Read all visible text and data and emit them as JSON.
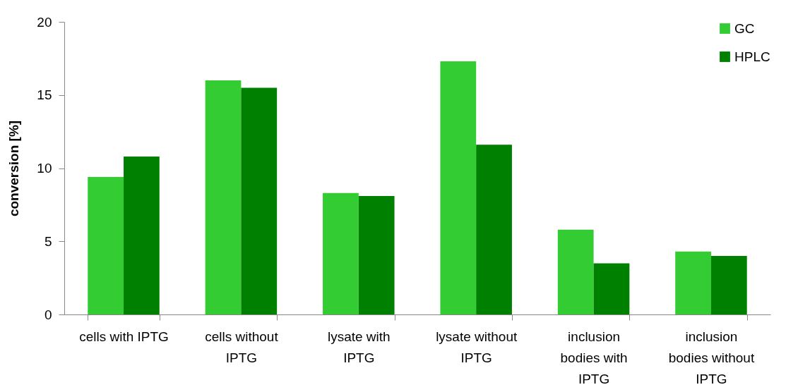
{
  "chart_data": {
    "type": "bar",
    "ylabel": "conversion [%]",
    "categories": [
      "cells with IPTG",
      "cells without IPTG",
      "lysate with IPTG",
      "lysate without IPTG",
      "inclusion bodies with IPTG",
      "inclusion bodies without IPTG"
    ],
    "series": [
      {
        "name": "GC",
        "color": "#33cc33",
        "values": [
          9.4,
          16.0,
          8.3,
          17.3,
          5.8,
          4.3
        ]
      },
      {
        "name": "HPLC",
        "color": "#008000",
        "values": [
          10.8,
          15.5,
          8.1,
          11.6,
          3.5,
          4.0
        ]
      }
    ],
    "ylim": [
      0,
      20
    ],
    "yticks": [
      0,
      5,
      10,
      15,
      20
    ],
    "grid": false,
    "legend": "top right"
  }
}
